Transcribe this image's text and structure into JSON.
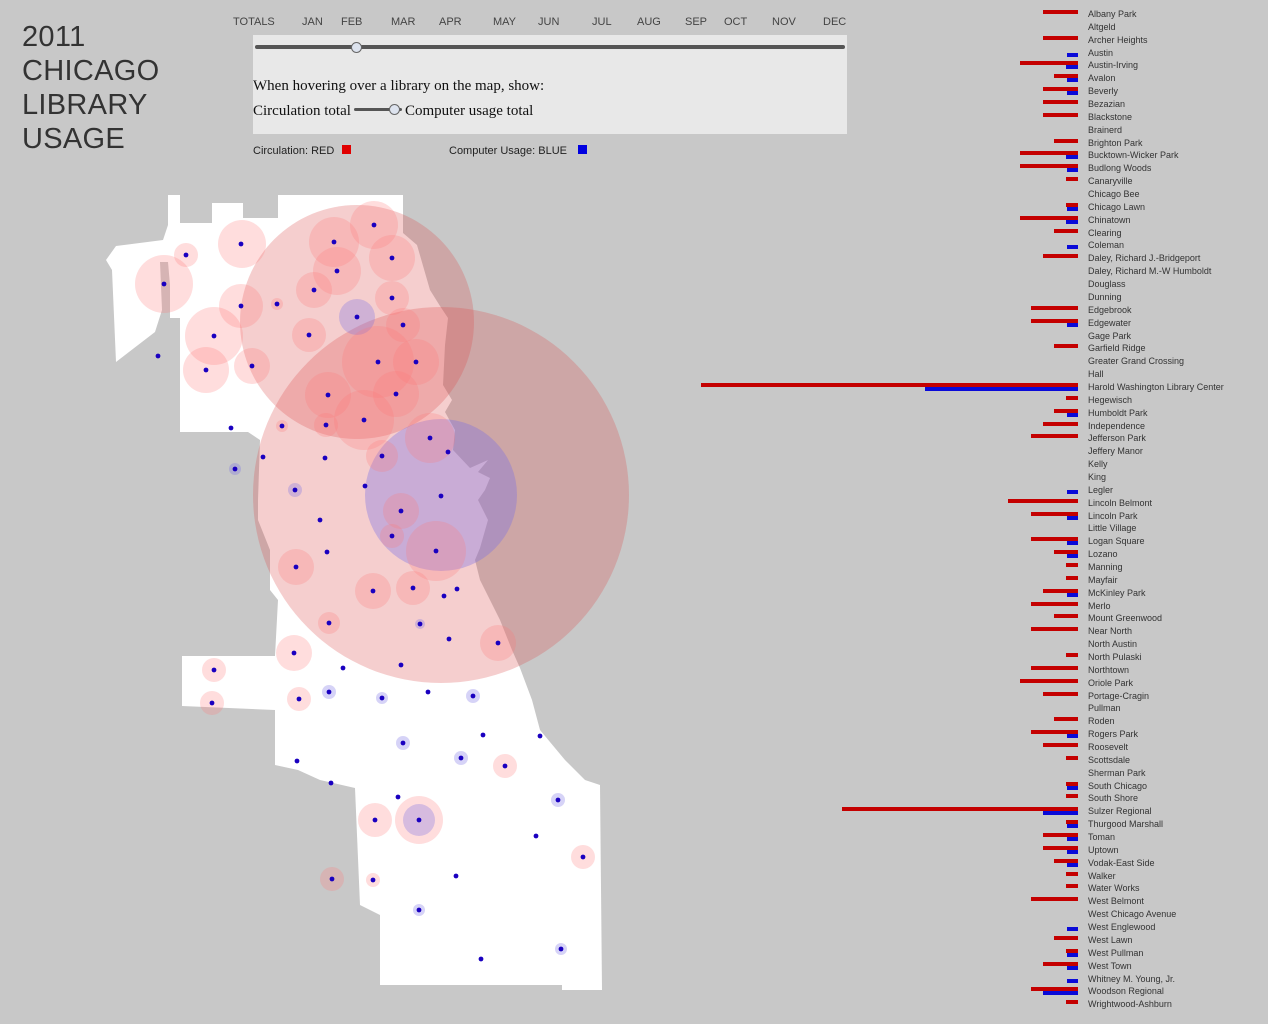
{
  "title": {
    "year": "2011",
    "line1": "CHICAGO",
    "line2": "LIBRARY",
    "line3": "USAGE"
  },
  "months": [
    "TOTALS",
    "JAN",
    "FEB",
    "MAR",
    "APR",
    "MAY",
    "JUN",
    "JUL",
    "AUG",
    "SEP",
    "OCT",
    "NOV",
    "DEC"
  ],
  "month_slider_selected": "FEB",
  "controls": {
    "hover_prompt": "When hovering over a library on the map, show:",
    "option_left": "Circulation total",
    "option_right": "Computer usage total"
  },
  "legend": {
    "circulation_label": "Circulation: RED",
    "computer_label": "Computer Usage: BLUE",
    "circulation_color": "#e00000",
    "computer_color": "#0000e0"
  },
  "colors": {
    "background": "#c8c8c8",
    "map_fill": "#ffffff",
    "bar_red": "#c40000",
    "bar_blue": "#0a0ad8",
    "dot": "#1a00c0"
  },
  "chart_data": {
    "type": "bar",
    "orientation": "horizontal",
    "series_names": [
      "Circulation",
      "Computer Usage"
    ],
    "libraries": [
      {
        "name": "Albany Park",
        "circ": 35,
        "comp": 0
      },
      {
        "name": "Altgeld",
        "circ": 0,
        "comp": 0
      },
      {
        "name": "Archer Heights",
        "circ": 35,
        "comp": 0
      },
      {
        "name": "Austin",
        "circ": 0,
        "comp": 11
      },
      {
        "name": "Austin-Irving",
        "circ": 58,
        "comp": 12
      },
      {
        "name": "Avalon",
        "circ": 24,
        "comp": 11
      },
      {
        "name": "Beverly",
        "circ": 35,
        "comp": 11
      },
      {
        "name": "Bezazian",
        "circ": 35,
        "comp": 0
      },
      {
        "name": "Blackstone",
        "circ": 35,
        "comp": 0
      },
      {
        "name": "Brainerd",
        "circ": 0,
        "comp": 0
      },
      {
        "name": "Brighton Park",
        "circ": 24,
        "comp": 0
      },
      {
        "name": "Bucktown-Wicker Park",
        "circ": 58,
        "comp": 12
      },
      {
        "name": "Budlong Woods",
        "circ": 58,
        "comp": 11
      },
      {
        "name": "Canaryville",
        "circ": 12,
        "comp": 0
      },
      {
        "name": "Chicago Bee",
        "circ": 0,
        "comp": 0
      },
      {
        "name": "Chicago Lawn",
        "circ": 12,
        "comp": 11
      },
      {
        "name": "Chinatown",
        "circ": 58,
        "comp": 12
      },
      {
        "name": "Clearing",
        "circ": 24,
        "comp": 0
      },
      {
        "name": "Coleman",
        "circ": 0,
        "comp": 11
      },
      {
        "name": "Daley, Richard J.-Bridgeport",
        "circ": 35,
        "comp": 0
      },
      {
        "name": "Daley, Richard M.-W Humboldt",
        "circ": 0,
        "comp": 0
      },
      {
        "name": "Douglass",
        "circ": 0,
        "comp": 0
      },
      {
        "name": "Dunning",
        "circ": 0,
        "comp": 0
      },
      {
        "name": "Edgebrook",
        "circ": 47,
        "comp": 0
      },
      {
        "name": "Edgewater",
        "circ": 47,
        "comp": 11
      },
      {
        "name": "Gage Park",
        "circ": 0,
        "comp": 0
      },
      {
        "name": "Garfield Ridge",
        "circ": 24,
        "comp": 0
      },
      {
        "name": "Greater Grand Crossing",
        "circ": 0,
        "comp": 0
      },
      {
        "name": "Hall",
        "circ": 0,
        "comp": 0
      },
      {
        "name": "Harold Washington Library Center",
        "circ": 377,
        "comp": 153
      },
      {
        "name": "Hegewisch",
        "circ": 12,
        "comp": 0
      },
      {
        "name": "Humboldt Park",
        "circ": 24,
        "comp": 11
      },
      {
        "name": "Independence",
        "circ": 35,
        "comp": 0
      },
      {
        "name": "Jefferson Park",
        "circ": 47,
        "comp": 0
      },
      {
        "name": "Jeffery Manor",
        "circ": 0,
        "comp": 0
      },
      {
        "name": "Kelly",
        "circ": 0,
        "comp": 0
      },
      {
        "name": "King",
        "circ": 0,
        "comp": 0
      },
      {
        "name": "Legler",
        "circ": 0,
        "comp": 11
      },
      {
        "name": "Lincoln Belmont",
        "circ": 70,
        "comp": 0
      },
      {
        "name": "Lincoln Park",
        "circ": 47,
        "comp": 11
      },
      {
        "name": "Little Village",
        "circ": 0,
        "comp": 0
      },
      {
        "name": "Logan Square",
        "circ": 47,
        "comp": 11
      },
      {
        "name": "Lozano",
        "circ": 24,
        "comp": 11
      },
      {
        "name": "Manning",
        "circ": 12,
        "comp": 0
      },
      {
        "name": "Mayfair",
        "circ": 12,
        "comp": 0
      },
      {
        "name": "McKinley Park",
        "circ": 35,
        "comp": 11
      },
      {
        "name": "Merlo",
        "circ": 47,
        "comp": 0
      },
      {
        "name": "Mount Greenwood",
        "circ": 24,
        "comp": 0
      },
      {
        "name": "Near North",
        "circ": 47,
        "comp": 0
      },
      {
        "name": "North Austin",
        "circ": 0,
        "comp": 0
      },
      {
        "name": "North Pulaski",
        "circ": 12,
        "comp": 0
      },
      {
        "name": "Northtown",
        "circ": 47,
        "comp": 0
      },
      {
        "name": "Oriole Park",
        "circ": 58,
        "comp": 0
      },
      {
        "name": "Portage-Cragin",
        "circ": 35,
        "comp": 0
      },
      {
        "name": "Pullman",
        "circ": 0,
        "comp": 0
      },
      {
        "name": "Roden",
        "circ": 24,
        "comp": 0
      },
      {
        "name": "Rogers Park",
        "circ": 47,
        "comp": 11
      },
      {
        "name": "Roosevelt",
        "circ": 35,
        "comp": 0
      },
      {
        "name": "Scottsdale",
        "circ": 12,
        "comp": 0
      },
      {
        "name": "Sherman Park",
        "circ": 0,
        "comp": 0
      },
      {
        "name": "South Chicago",
        "circ": 12,
        "comp": 11
      },
      {
        "name": "South Shore",
        "circ": 12,
        "comp": 0
      },
      {
        "name": "Sulzer Regional",
        "circ": 236,
        "comp": 35
      },
      {
        "name": "Thurgood Marshall",
        "circ": 12,
        "comp": 11
      },
      {
        "name": "Toman",
        "circ": 35,
        "comp": 11
      },
      {
        "name": "Uptown",
        "circ": 35,
        "comp": 11
      },
      {
        "name": "Vodak-East Side",
        "circ": 24,
        "comp": 11
      },
      {
        "name": "Walker",
        "circ": 12,
        "comp": 0
      },
      {
        "name": "Water Works",
        "circ": 12,
        "comp": 0
      },
      {
        "name": "West Belmont",
        "circ": 47,
        "comp": 0
      },
      {
        "name": "West Chicago Avenue",
        "circ": 0,
        "comp": 0
      },
      {
        "name": "West Englewood",
        "circ": 0,
        "comp": 11
      },
      {
        "name": "West Lawn",
        "circ": 24,
        "comp": 0
      },
      {
        "name": "West Pullman",
        "circ": 12,
        "comp": 11
      },
      {
        "name": "West Town",
        "circ": 35,
        "comp": 11
      },
      {
        "name": "Whitney M. Young, Jr.",
        "circ": 0,
        "comp": 11
      },
      {
        "name": "Woodson Regional",
        "circ": 47,
        "comp": 35
      },
      {
        "name": "Wrightwood-Ashburn",
        "circ": 12,
        "comp": 0
      }
    ]
  }
}
